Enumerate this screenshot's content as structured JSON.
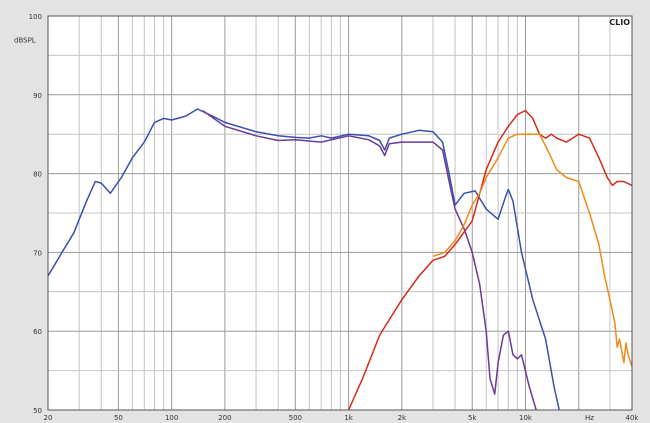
{
  "chart_data": {
    "type": "line",
    "brand": "CLIO",
    "ylabel": "dBSPL",
    "xunit": "Hz",
    "x_scale": "log",
    "xlim": [
      20,
      40000
    ],
    "ylim": [
      50,
      100
    ],
    "grid": true,
    "x_ticks": [
      {
        "value": 20,
        "label": "20"
      },
      {
        "value": 50,
        "label": "50"
      },
      {
        "value": 100,
        "label": "100"
      },
      {
        "value": 200,
        "label": "200"
      },
      {
        "value": 500,
        "label": "500"
      },
      {
        "value": 1000,
        "label": "1k"
      },
      {
        "value": 2000,
        "label": "2k"
      },
      {
        "value": 5000,
        "label": "5k"
      },
      {
        "value": 10000,
        "label": "10k"
      },
      {
        "value": 40000,
        "label": "40k"
      }
    ],
    "y_ticks": [
      {
        "value": 100,
        "label": "100"
      },
      {
        "value": 90,
        "label": "90"
      },
      {
        "value": 80,
        "label": "80"
      },
      {
        "value": 70,
        "label": "70"
      },
      {
        "value": 60,
        "label": "60"
      },
      {
        "value": 50,
        "label": "50"
      }
    ],
    "series": [
      {
        "color": "#3a4fb0",
        "points": [
          [
            20,
            67
          ],
          [
            24,
            70
          ],
          [
            28,
            72.5
          ],
          [
            33,
            76.5
          ],
          [
            37,
            79
          ],
          [
            40,
            78.8
          ],
          [
            45,
            77.5
          ],
          [
            52,
            79.5
          ],
          [
            60,
            82
          ],
          [
            70,
            84
          ],
          [
            80,
            86.5
          ],
          [
            90,
            87
          ],
          [
            100,
            86.8
          ],
          [
            120,
            87.3
          ],
          [
            140,
            88.2
          ],
          [
            170,
            87.3
          ],
          [
            200,
            86.5
          ],
          [
            300,
            85.3
          ],
          [
            400,
            84.8
          ],
          [
            500,
            84.6
          ],
          [
            600,
            84.5
          ],
          [
            700,
            84.8
          ],
          [
            800,
            84.5
          ],
          [
            1000,
            85
          ],
          [
            1300,
            84.8
          ],
          [
            1500,
            84.2
          ],
          [
            1600,
            83
          ],
          [
            1700,
            84.5
          ],
          [
            2000,
            85
          ],
          [
            2500,
            85.5
          ],
          [
            3000,
            85.3
          ],
          [
            3400,
            84
          ],
          [
            3700,
            80
          ],
          [
            4000,
            76
          ],
          [
            4500,
            77.5
          ],
          [
            5200,
            77.8
          ],
          [
            6000,
            75.5
          ],
          [
            7000,
            74.2
          ],
          [
            7700,
            77
          ],
          [
            8000,
            78
          ],
          [
            8500,
            76.5
          ],
          [
            9500,
            70
          ],
          [
            11000,
            64
          ],
          [
            13000,
            59
          ],
          [
            14500,
            53
          ],
          [
            15500,
            50
          ]
        ]
      },
      {
        "color": "#6a3a96",
        "points": [
          [
            150,
            88
          ],
          [
            200,
            86
          ],
          [
            300,
            84.8
          ],
          [
            400,
            84.2
          ],
          [
            500,
            84.3
          ],
          [
            700,
            84
          ],
          [
            1000,
            84.8
          ],
          [
            1300,
            84.3
          ],
          [
            1500,
            83.5
          ],
          [
            1600,
            82.3
          ],
          [
            1700,
            83.8
          ],
          [
            2000,
            84
          ],
          [
            2500,
            84
          ],
          [
            3000,
            84
          ],
          [
            3400,
            83
          ],
          [
            3700,
            79
          ],
          [
            4000,
            75.5
          ],
          [
            4500,
            73
          ],
          [
            5000,
            70
          ],
          [
            5500,
            66
          ],
          [
            6000,
            60
          ],
          [
            6300,
            54
          ],
          [
            6700,
            52
          ],
          [
            7000,
            56
          ],
          [
            7500,
            59.5
          ],
          [
            8000,
            60
          ],
          [
            8500,
            57
          ],
          [
            9000,
            56.5
          ],
          [
            9500,
            57
          ],
          [
            10500,
            53
          ],
          [
            11500,
            50
          ]
        ]
      },
      {
        "color": "#d42a1a",
        "points": [
          [
            1000,
            50
          ],
          [
            1200,
            54
          ],
          [
            1500,
            59.5
          ],
          [
            2000,
            64
          ],
          [
            2500,
            67
          ],
          [
            3000,
            69
          ],
          [
            3500,
            69.5
          ],
          [
            4000,
            71
          ],
          [
            5000,
            74
          ],
          [
            6000,
            80.5
          ],
          [
            7000,
            84
          ],
          [
            8000,
            86
          ],
          [
            9000,
            87.5
          ],
          [
            10000,
            88
          ],
          [
            11000,
            87
          ],
          [
            12000,
            85
          ],
          [
            13000,
            84.5
          ],
          [
            14000,
            85
          ],
          [
            15000,
            84.5
          ],
          [
            17000,
            84
          ],
          [
            20000,
            85
          ],
          [
            23000,
            84.5
          ],
          [
            26000,
            82
          ],
          [
            29000,
            79.5
          ],
          [
            31000,
            78.5
          ],
          [
            33000,
            79
          ],
          [
            36000,
            79
          ],
          [
            40000,
            78.5
          ]
        ]
      },
      {
        "color": "#f08a1a",
        "points": [
          [
            3000,
            69.5
          ],
          [
            3500,
            70
          ],
          [
            4000,
            71.5
          ],
          [
            4500,
            73.5
          ],
          [
            5000,
            76
          ],
          [
            5500,
            77.5
          ],
          [
            6000,
            79.5
          ],
          [
            7000,
            82
          ],
          [
            8000,
            84.5
          ],
          [
            9000,
            85
          ],
          [
            10000,
            85
          ],
          [
            12000,
            85
          ],
          [
            13000,
            83.5
          ],
          [
            14000,
            82
          ],
          [
            15000,
            80.5
          ],
          [
            17000,
            79.5
          ],
          [
            20000,
            79
          ],
          [
            23000,
            75
          ],
          [
            26000,
            71
          ],
          [
            28000,
            67
          ],
          [
            30000,
            64
          ],
          [
            32000,
            61
          ],
          [
            33000,
            58
          ],
          [
            34000,
            59
          ],
          [
            36000,
            56
          ],
          [
            37000,
            58.5
          ],
          [
            38000,
            57
          ],
          [
            40000,
            55.5
          ]
        ]
      }
    ]
  }
}
